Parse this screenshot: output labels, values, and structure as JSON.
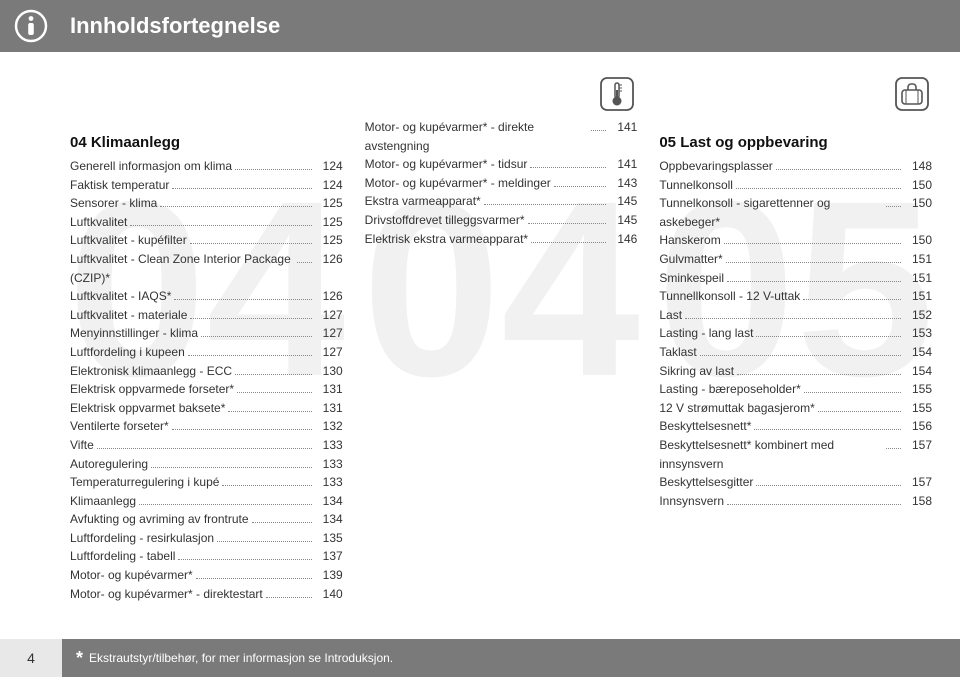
{
  "colors": {
    "header_bg": "#7a7a7a",
    "header_text": "#ffffff",
    "ghost_number": "#f1f1f1",
    "text": "#333333",
    "dots": "#888888",
    "pagebox_bg": "#e8e8e8"
  },
  "header_title": "Innholdsfortegnelse",
  "page_number": "4",
  "footnote": "Ekstrautstyr/tilbehør, for mer informasjon se Introduksjon.",
  "col1": {
    "ghost": "04",
    "section": "04 Klimaanlegg",
    "entries": [
      {
        "t": "Generell informasjon om klima",
        "p": "124"
      },
      {
        "t": "Faktisk temperatur",
        "p": "124"
      },
      {
        "t": "Sensorer - klima",
        "p": "125"
      },
      {
        "t": "Luftkvalitet",
        "p": "125"
      },
      {
        "t": "Luftkvalitet - kupéfilter",
        "p": "125"
      },
      {
        "t": "Luftkvalitet - Clean Zone Interior Package (CZIP)*",
        "p": "126"
      },
      {
        "t": "Luftkvalitet - IAQS*",
        "p": "126"
      },
      {
        "t": "Luftkvalitet - materiale",
        "p": "127"
      },
      {
        "t": "Menyinnstillinger - klima",
        "p": "127"
      },
      {
        "t": "Luftfordeling i kupeen",
        "p": "127"
      },
      {
        "t": "Elektronisk klimaanlegg - ECC",
        "p": "130"
      },
      {
        "t": "Elektrisk oppvarmede forseter*",
        "p": "131"
      },
      {
        "t": "Elektrisk oppvarmet baksete*",
        "p": "131"
      },
      {
        "t": "Ventilerte forseter*",
        "p": "132"
      },
      {
        "t": "Vifte",
        "p": "133"
      },
      {
        "t": "Autoregulering",
        "p": "133"
      },
      {
        "t": "Temperaturregulering i kupé",
        "p": "133"
      },
      {
        "t": "Klimaanlegg",
        "p": "134"
      },
      {
        "t": "Avfukting og avriming av frontrute",
        "p": "134"
      },
      {
        "t": "Luftfordeling - resirkulasjon",
        "p": "135"
      },
      {
        "t": "Luftfordeling - tabell",
        "p": "137"
      },
      {
        "t": "Motor- og kupévarmer*",
        "p": "139"
      },
      {
        "t": "Motor- og kupévarmer* - direktestart",
        "p": "140"
      }
    ]
  },
  "col2": {
    "ghost": "04",
    "icon": "thermometer",
    "entries": [
      {
        "t": "Motor- og kupévarmer* - direkte avstengning",
        "p": "141"
      },
      {
        "t": "Motor- og kupévarmer* - tidsur",
        "p": "141"
      },
      {
        "t": "Motor- og kupévarmer* - meldinger",
        "p": "143"
      },
      {
        "t": "Ekstra varmeapparat*",
        "p": "145"
      },
      {
        "t": "Drivstoffdrevet tilleggsvarmer*",
        "p": "145"
      },
      {
        "t": "Elektrisk ekstra varmeapparat*",
        "p": "146"
      }
    ]
  },
  "col3": {
    "ghost": "05",
    "icon": "suitcase",
    "section": "05 Last og oppbevaring",
    "entries": [
      {
        "t": "Oppbevaringsplasser",
        "p": "148"
      },
      {
        "t": "Tunnelkonsoll",
        "p": "150"
      },
      {
        "t": "Tunnelkonsoll - sigarettenner og askebeger*",
        "p": "150"
      },
      {
        "t": "Hanskerom",
        "p": "150"
      },
      {
        "t": "Gulvmatter*",
        "p": "151"
      },
      {
        "t": "Sminkespeil",
        "p": "151"
      },
      {
        "t": "Tunnellkonsoll - 12 V-uttak",
        "p": "151"
      },
      {
        "t": "Last",
        "p": "152"
      },
      {
        "t": "Lasting - lang last",
        "p": "153"
      },
      {
        "t": "Taklast",
        "p": "154"
      },
      {
        "t": "Sikring av last",
        "p": "154"
      },
      {
        "t": "Lasting - bæreposeholder*",
        "p": "155"
      },
      {
        "t": "12 V strømuttak bagasjerom*",
        "p": "155"
      },
      {
        "t": "Beskyttelsesnett*",
        "p": "156"
      },
      {
        "t": "Beskyttelsesnett* kombinert med innsynsvern",
        "p": "157"
      },
      {
        "t": "Beskyttelsesgitter",
        "p": "157"
      },
      {
        "t": "Innsynsvern",
        "p": "158"
      }
    ]
  }
}
